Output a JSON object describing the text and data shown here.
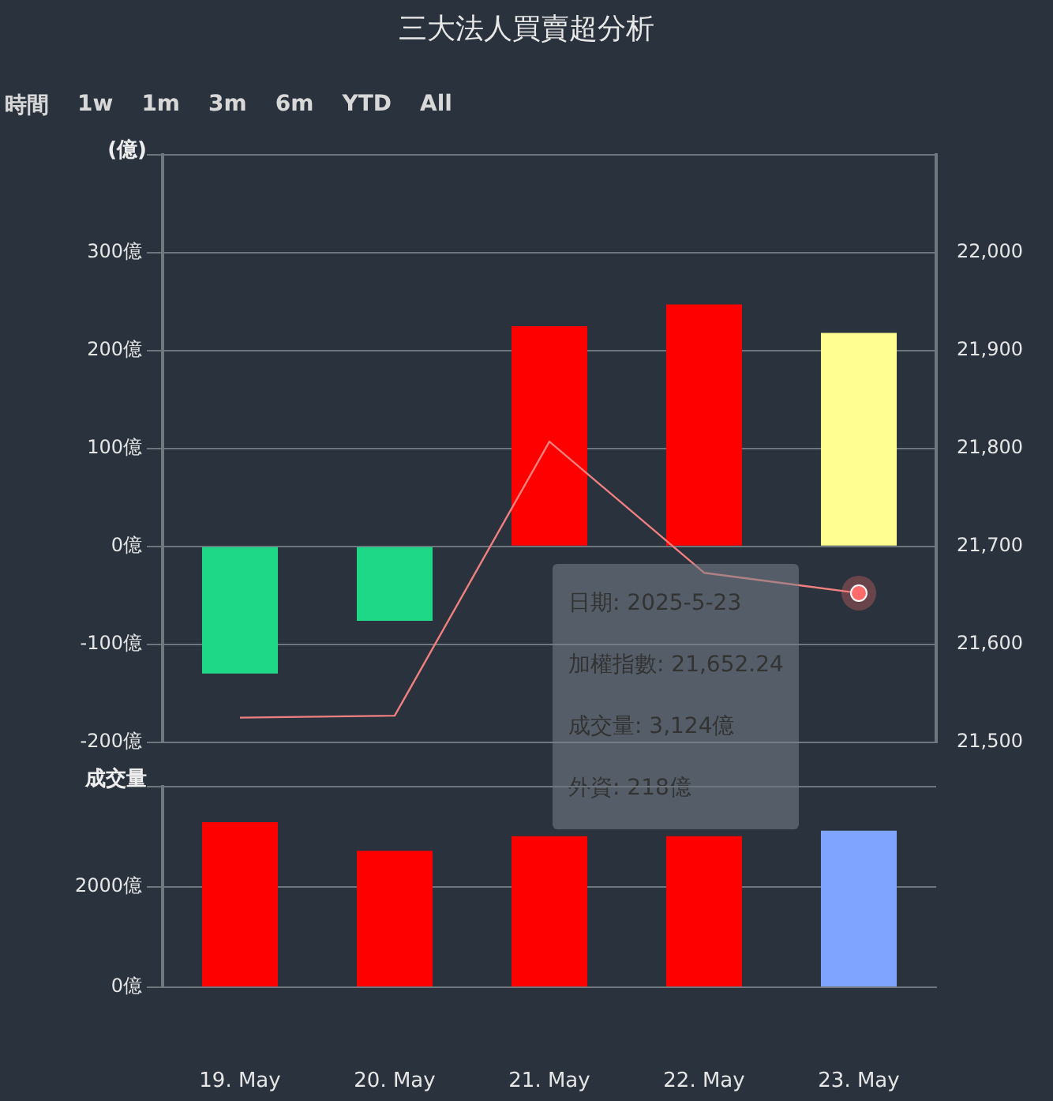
{
  "chart_data": [
    {
      "type": "bar",
      "title": "三大法人買賣超分析",
      "ylabel": "(億)",
      "series": [
        {
          "type": "bar",
          "colors": [
            "#1ed887",
            "#1ed887",
            "#ff0000",
            "#ff0000",
            "#ffff91"
          ],
          "values": [
            -130,
            -76,
            225,
            247,
            218
          ]
        },
        {
          "type": "line",
          "axis": "y2",
          "color": "#f08080",
          "values": [
            21525,
            21527,
            21807,
            21673,
            21652.24
          ]
        }
      ],
      "ylim": [
        -200,
        400
      ],
      "yticks": [
        {
          "value": -200,
          "label": "-200億"
        },
        {
          "value": -100,
          "label": "-100億"
        },
        {
          "value": 0,
          "label": "0億"
        },
        {
          "value": 100,
          "label": "100億"
        },
        {
          "value": 200,
          "label": "200億"
        },
        {
          "value": 300,
          "label": "300億"
        },
        {
          "value": 400,
          "label": null
        }
      ],
      "y2lim": [
        21500,
        22100
      ],
      "y2ticks": [
        {
          "value": 21500,
          "label": "21,500"
        },
        {
          "value": 21600,
          "label": "21,600"
        },
        {
          "value": 21700,
          "label": "21,700"
        },
        {
          "value": 21800,
          "label": "21,800"
        },
        {
          "value": 21900,
          "label": "21,900"
        },
        {
          "value": 22000,
          "label": "22,000"
        }
      ],
      "tick_labels": "y",
      "grid": "y",
      "legend": false,
      "annotations": [
        "時間",
        "1w",
        "1m",
        "3m",
        "6m",
        "YTD",
        "All",
        "日期: 2025-5-23",
        "加權指數: 21,652.24",
        "成交量: 3,124億",
        "外資: 218億"
      ]
    },
    {
      "type": "bar",
      "ylabel": "成交量",
      "categories": [
        "19. May",
        "20. May",
        "21. May",
        "22. May",
        "23. May"
      ],
      "values": [
        3290,
        2720,
        3010,
        3010,
        3124
      ],
      "colors": [
        "#ff0000",
        "#ff0000",
        "#ff0000",
        "#ff0000",
        "#7fa4ff"
      ],
      "ylim": [
        0,
        4000
      ],
      "yticks": [
        {
          "value": 0,
          "label": "0億"
        },
        {
          "value": 2000,
          "label": "2000億"
        },
        {
          "value": 4000,
          "label": null
        }
      ],
      "grid": "y",
      "legend": false
    }
  ]
}
